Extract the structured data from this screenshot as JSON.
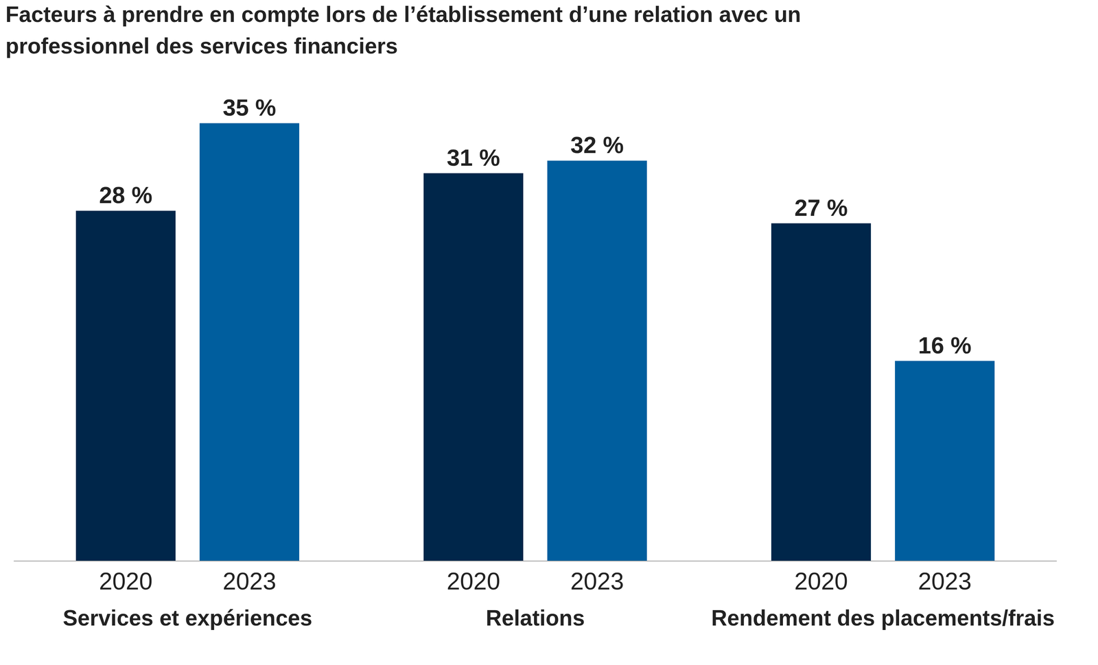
{
  "chart_data": {
    "type": "bar",
    "title": "Facteurs à prendre en compte lors de l’établissement d’une relation avec un professionnel des services financiers",
    "categories": [
      "Services et expériences",
      "Relations",
      "Rendement des placements/frais"
    ],
    "series": [
      {
        "name": "2020",
        "color": "#00264a",
        "values": [
          28,
          31,
          27
        ],
        "value_labels": [
          "28 %",
          "31 %",
          "27 %"
        ]
      },
      {
        "name": "2023",
        "color": "#005e9e",
        "values": [
          35,
          32,
          16
        ],
        "value_labels": [
          "35 %",
          "32 %",
          "16 %"
        ]
      }
    ],
    "ylim": [
      0,
      35
    ],
    "yticks": [],
    "grid": false,
    "data_labels": true,
    "tick_labels": "x"
  }
}
